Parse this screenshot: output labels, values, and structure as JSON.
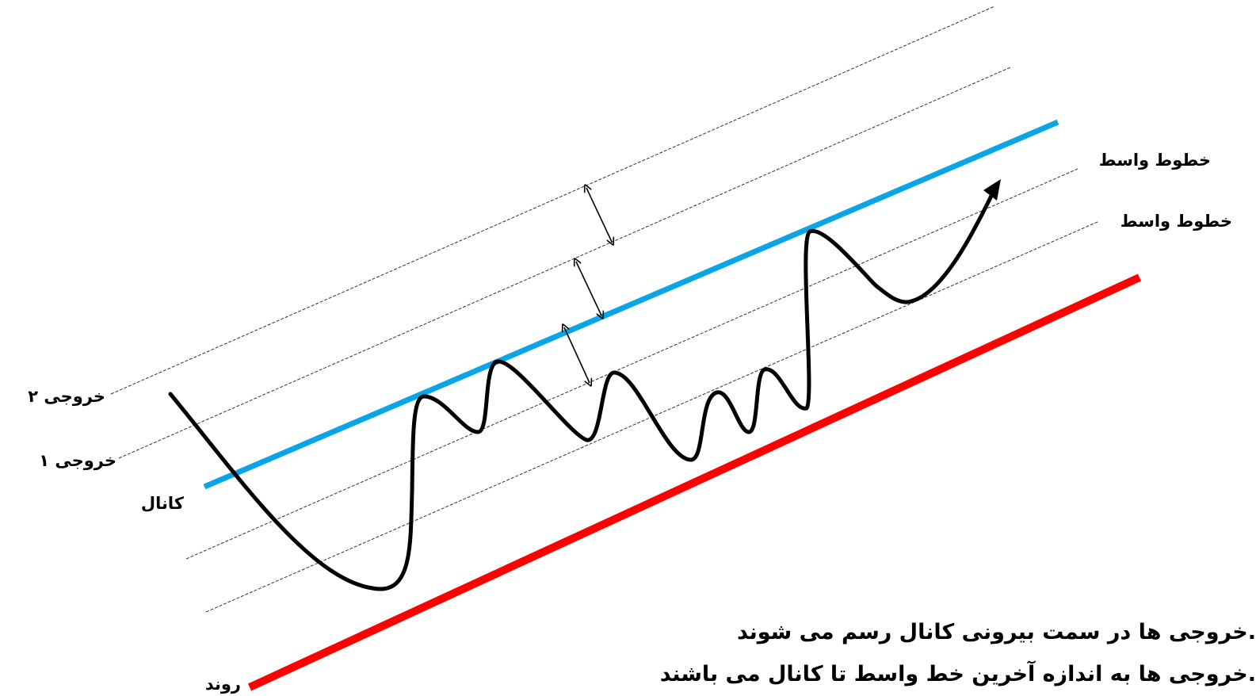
{
  "labels": {
    "exit_2": "خروجی ۲",
    "exit_1": "خروجی ۱",
    "channel": "کانال",
    "trend": "روند",
    "mid_lines_top": "خطوط واسط",
    "mid_lines_bottom": "خطوط واسط"
  },
  "notes": {
    "line_1": "خروجی ها در سمت بیرونی کانال رسم می شوند.",
    "line_2": "خروجی ها به اندازه آخرین خط واسط تا کانال می باشند."
  },
  "colors": {
    "channel_line": "#0AA5E6",
    "trend_line": "#FF0000",
    "price_path": "#000000",
    "guide_lines": "#333333"
  }
}
